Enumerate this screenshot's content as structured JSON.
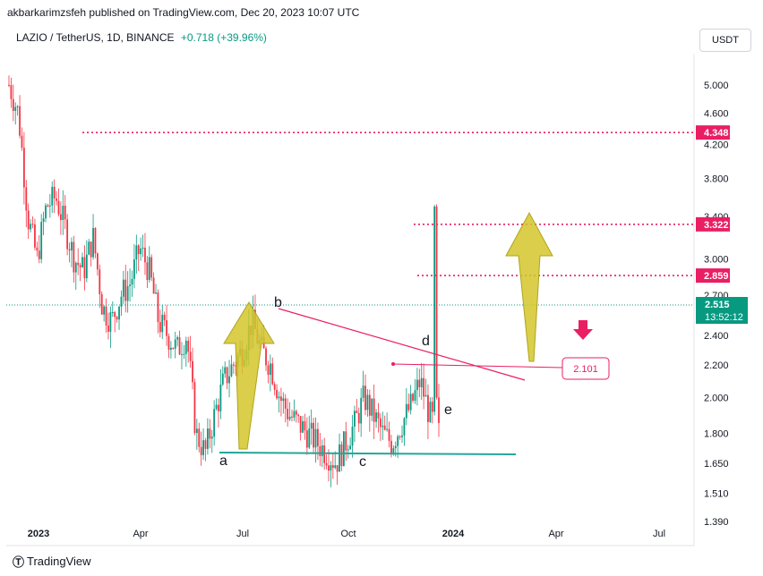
{
  "header": {
    "publisher": "akbarkarimzsfeh published on TradingView.com, Dec 20, 2023 10:07 UTC"
  },
  "legend": {
    "symbol": "LAZIO / TetherUS, 1D, BINANCE",
    "change": "+0.718 (+39.96%)"
  },
  "currency_button": "USDT",
  "footer": {
    "brand": "TradingView",
    "logo_glyph": "Ⓣ"
  },
  "colors": {
    "up": "#089981",
    "down": "#f23645",
    "level": "#e91e63",
    "support": "#26a69a",
    "arrow": "#d4c52a"
  },
  "chart_data": {
    "type": "candlestick",
    "title": "LAZIO / TetherUS, 1D, BINANCE",
    "y_scale": "log",
    "ylim": [
      1.33,
      5.45
    ],
    "y_ticks": [
      "5.000",
      "4.600",
      "4.200",
      "3.800",
      "3.400",
      "3.000",
      "2.700",
      "2.400",
      "2.200",
      "2.000",
      "1.800",
      "1.650",
      "1.510",
      "1.390"
    ],
    "x_ticks": [
      {
        "label": "2023",
        "bold": true
      },
      {
        "label": "Apr",
        "bold": false
      },
      {
        "label": "Jul",
        "bold": false
      },
      {
        "label": "Oct",
        "bold": false
      },
      {
        "label": "2024",
        "bold": true
      },
      {
        "label": "Apr",
        "bold": false
      },
      {
        "label": "Jul",
        "bold": false
      }
    ],
    "last_price": {
      "value": "2.515",
      "countdown": "13:52:12"
    },
    "levels": [
      {
        "value": 4.348,
        "label": "4.348"
      },
      {
        "value": 3.322,
        "label": "3.322"
      },
      {
        "value": 2.859,
        "label": "2.859"
      }
    ],
    "callout": {
      "label": "2.101",
      "value": 2.101
    },
    "wave_labels": [
      "a",
      "b",
      "c",
      "d",
      "e"
    ],
    "candles_close_path": [
      5.0,
      4.6,
      3.4,
      3.0,
      3.5,
      3.6,
      3.3,
      3.0,
      2.9,
      3.2,
      2.6,
      2.5,
      2.7,
      2.8,
      3.1,
      2.9,
      2.5,
      2.4,
      2.3,
      2.4,
      1.8,
      1.7,
      1.9,
      2.1,
      2.2,
      2.3,
      2.5,
      2.3,
      2.2,
      2.0,
      1.9,
      1.85,
      1.8,
      1.75,
      1.7,
      1.65,
      1.75,
      1.85,
      2.0,
      1.9,
      1.8,
      1.75,
      1.85,
      1.95,
      2.1,
      1.9,
      1.8
    ]
  }
}
